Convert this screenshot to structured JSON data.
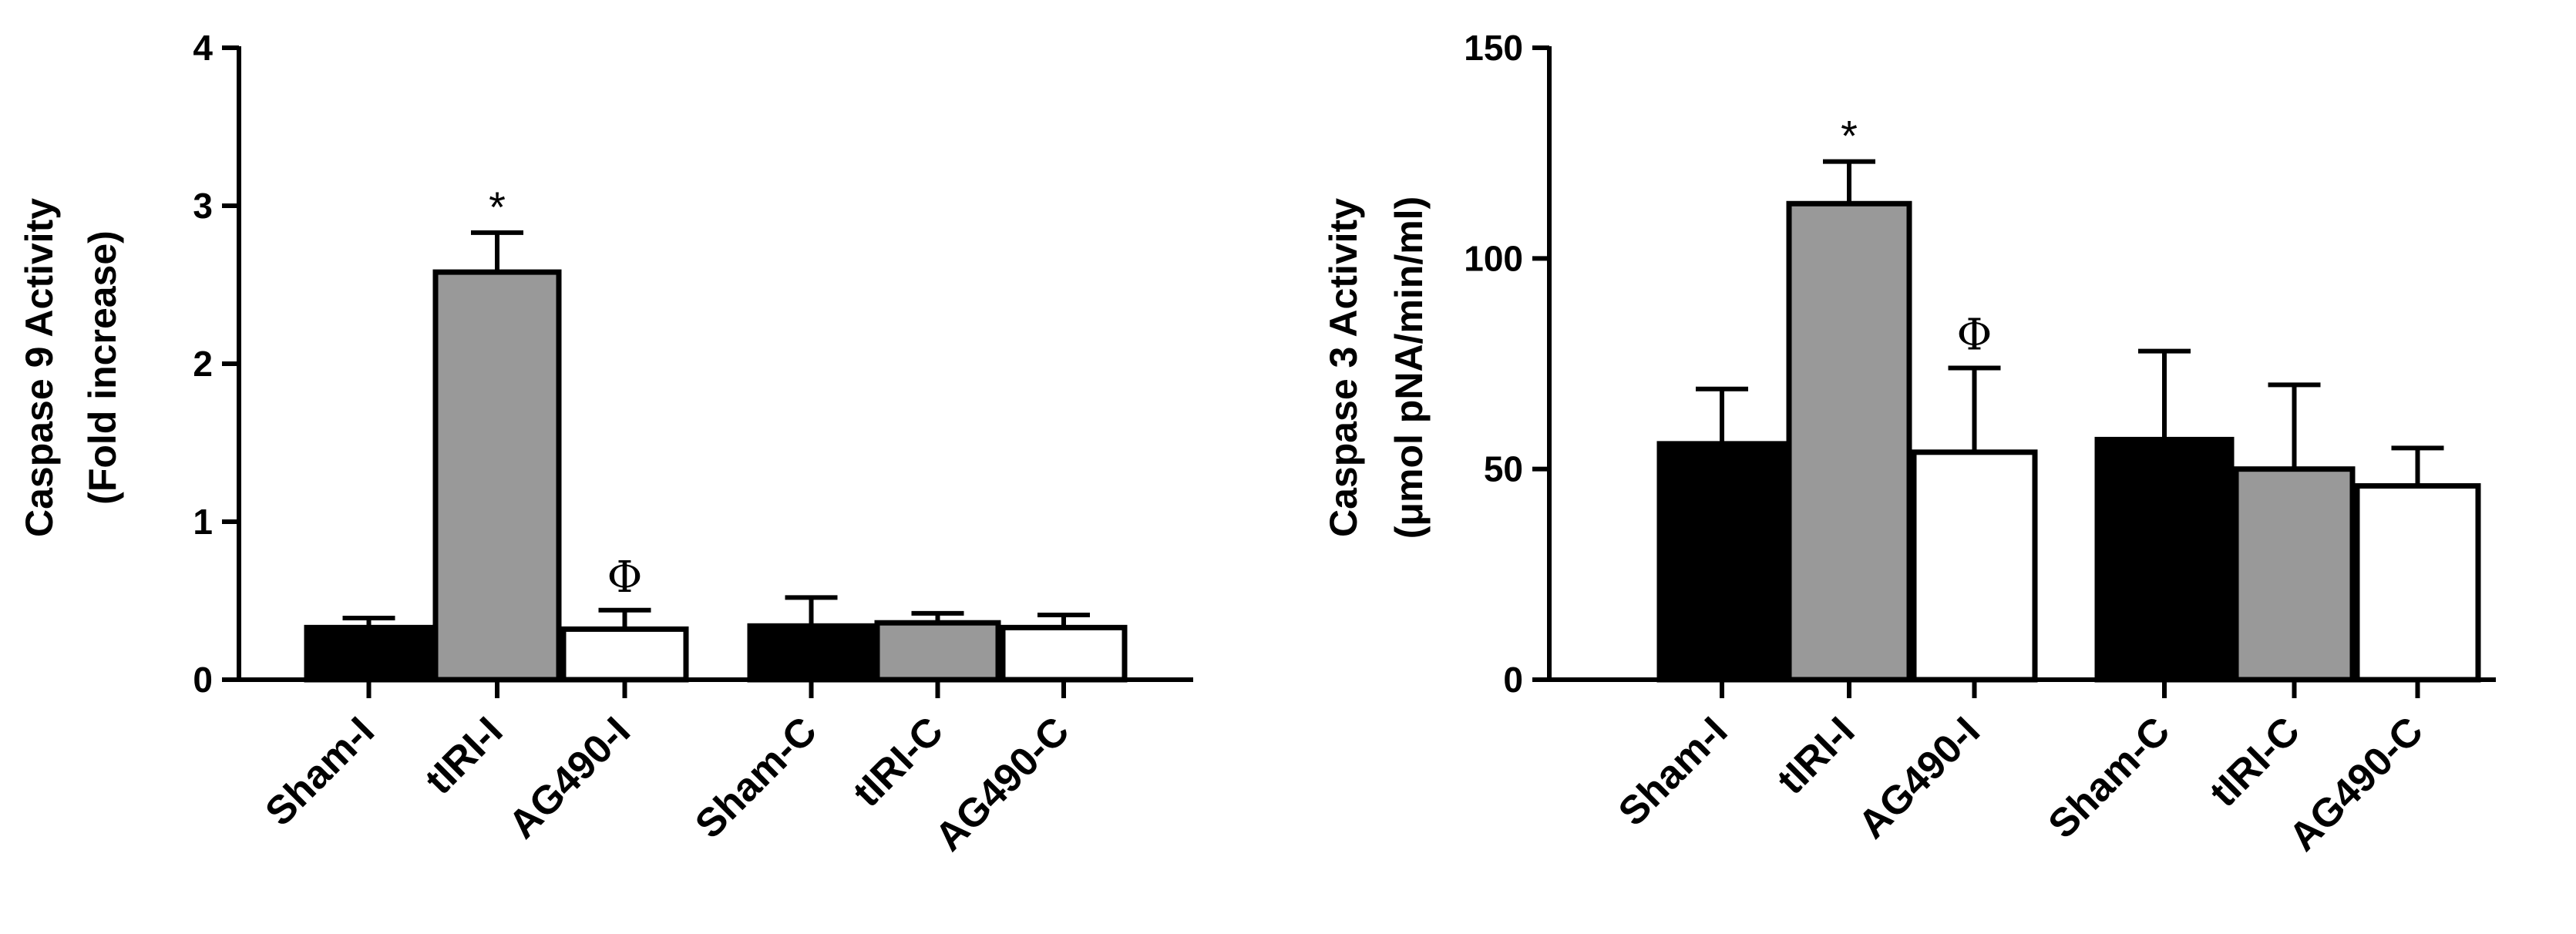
{
  "colors": {
    "Sham": "#000000",
    "tIRI": "#999999",
    "AG490": "#ffffff",
    "outline": "#000000"
  },
  "chart_data": [
    {
      "type": "bar",
      "ylabel": [
        "Caspase 9 Activity",
        "(Fold increase)"
      ],
      "ylim": [
        0,
        4
      ],
      "yticks": [
        0,
        1,
        2,
        3,
        4
      ],
      "grid": false,
      "categories": [
        "Sham-I",
        "tIRI-I",
        "AG490-I",
        "Sham-C",
        "tIRI-C",
        "AG490-C"
      ],
      "groups": [
        [
          "Sham-I",
          "tIRI-I",
          "AG490-I"
        ],
        [
          "Sham-C",
          "tIRI-C",
          "AG490-C"
        ]
      ],
      "bar_colors": [
        "Sham",
        "tIRI",
        "AG490",
        "Sham",
        "tIRI",
        "AG490"
      ],
      "values": [
        0.33,
        2.58,
        0.32,
        0.34,
        0.36,
        0.33
      ],
      "errors": [
        0.06,
        0.25,
        0.12,
        0.18,
        0.06,
        0.08
      ],
      "annotations": [
        {
          "category": "tIRI-I",
          "text": "*"
        },
        {
          "category": "AG490-I",
          "text": "Φ"
        }
      ]
    },
    {
      "type": "bar",
      "ylabel": [
        "Caspase 3 Activity",
        "(μmol pNA/min/ml)"
      ],
      "ylim": [
        0,
        150
      ],
      "yticks": [
        0,
        50,
        100,
        150
      ],
      "grid": false,
      "categories": [
        "Sham-I",
        "tIRI-I",
        "AG490-I",
        "Sham-C",
        "tIRI-C",
        "AG490-C"
      ],
      "groups": [
        [
          "Sham-I",
          "tIRI-I",
          "AG490-I"
        ],
        [
          "Sham-C",
          "tIRI-C",
          "AG490-C"
        ]
      ],
      "bar_colors": [
        "Sham",
        "tIRI",
        "AG490",
        "Sham",
        "tIRI",
        "AG490"
      ],
      "values": [
        56,
        113,
        54,
        57,
        50,
        46
      ],
      "errors": [
        13,
        10,
        20,
        21,
        20,
        9
      ],
      "annotations": [
        {
          "category": "tIRI-I",
          "text": "*"
        },
        {
          "category": "AG490-I",
          "text": "Φ"
        }
      ]
    }
  ]
}
